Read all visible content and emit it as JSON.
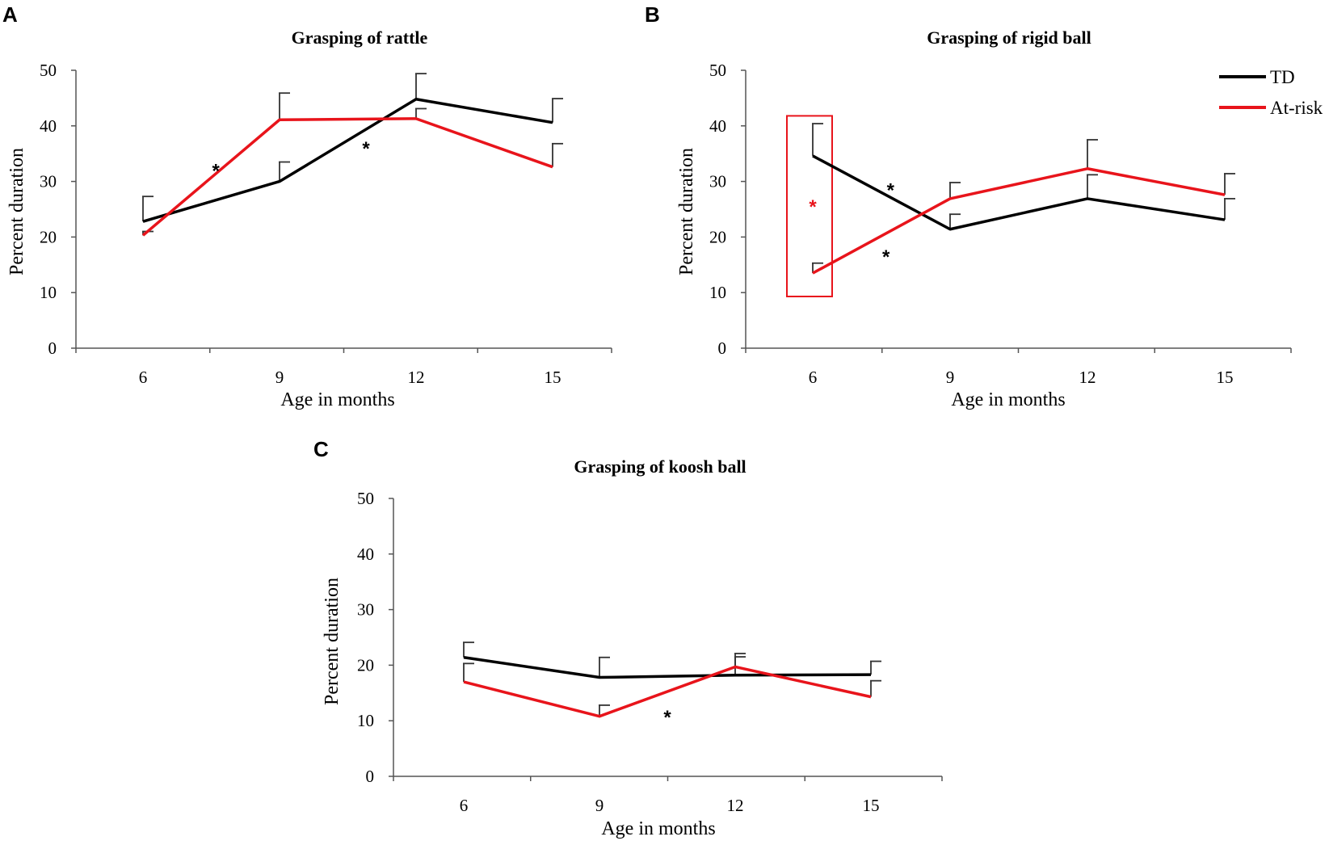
{
  "chart_data": [
    {
      "panel": "A",
      "type": "line",
      "title": "Grasping of rattle",
      "xlabel": "Age in months",
      "ylabel": "Percent duration",
      "categories": [
        "6",
        "9",
        "12",
        "15"
      ],
      "ylim": [
        0,
        50
      ],
      "yticks": [
        "0",
        "10",
        "20",
        "30",
        "40",
        "50"
      ],
      "series": [
        {
          "name": "TD",
          "color": "#000000",
          "values": [
            22.8,
            30.0,
            44.8,
            40.6
          ],
          "errors": [
            4.5,
            3.5,
            4.6,
            4.3
          ]
        },
        {
          "name": "At-risk",
          "color": "#e8141b",
          "values": [
            20.3,
            41.1,
            41.3,
            32.6
          ],
          "errors": [
            0.7,
            4.8,
            1.8,
            4.2
          ]
        }
      ],
      "annotations": [
        {
          "text": "*",
          "color": "#000000",
          "x": 7.6,
          "y": 32.5
        },
        {
          "text": "*",
          "color": "#000000",
          "x": 10.9,
          "y": 36.5
        }
      ]
    },
    {
      "panel": "B",
      "type": "line",
      "title": "Grasping of rigid ball",
      "xlabel": "Age in months",
      "ylabel": "Percent duration",
      "categories": [
        "6",
        "9",
        "12",
        "15"
      ],
      "ylim": [
        0,
        50
      ],
      "yticks": [
        "0",
        "10",
        "20",
        "30",
        "40",
        "50"
      ],
      "series": [
        {
          "name": "TD",
          "color": "#000000",
          "values": [
            34.6,
            21.4,
            26.9,
            23.1
          ],
          "errors": [
            5.8,
            2.7,
            4.3,
            3.8
          ]
        },
        {
          "name": "At-risk",
          "color": "#e8141b",
          "values": [
            13.5,
            26.9,
            32.3,
            27.6
          ],
          "errors": [
            1.8,
            2.9,
            5.2,
            3.8
          ]
        }
      ],
      "legend": {
        "position": "top-right",
        "entries": [
          "TD",
          "At-risk"
        ]
      },
      "highlight": {
        "x_category": "6",
        "y_range": [
          9.3,
          41.8
        ],
        "color": "#e8141b"
      },
      "annotations": [
        {
          "text": "*",
          "color": "#e8141b",
          "x": 6.0,
          "y": 26.0
        },
        {
          "text": "*",
          "color": "#000000",
          "x": 7.7,
          "y": 29.0
        },
        {
          "text": "*",
          "color": "#000000",
          "x": 7.6,
          "y": 17.0
        }
      ]
    },
    {
      "panel": "C",
      "type": "line",
      "title": "Grasping of koosh ball",
      "xlabel": "Age in months",
      "ylabel": "Percent duration",
      "categories": [
        "6",
        "9",
        "12",
        "15"
      ],
      "ylim": [
        0,
        50
      ],
      "yticks": [
        "0",
        "10",
        "20",
        "30",
        "40",
        "50"
      ],
      "series": [
        {
          "name": "TD",
          "color": "#000000",
          "values": [
            21.4,
            17.8,
            18.2,
            18.3
          ],
          "errors": [
            2.7,
            3.6,
            3.9,
            2.4
          ]
        },
        {
          "name": "At-risk",
          "color": "#e8141b",
          "values": [
            17.0,
            10.8,
            19.7,
            14.3
          ],
          "errors": [
            3.3,
            2.0,
            1.8,
            2.9
          ]
        }
      ],
      "annotations": [
        {
          "text": "*",
          "color": "#000000",
          "x": 10.5,
          "y": 11.2
        }
      ]
    }
  ]
}
